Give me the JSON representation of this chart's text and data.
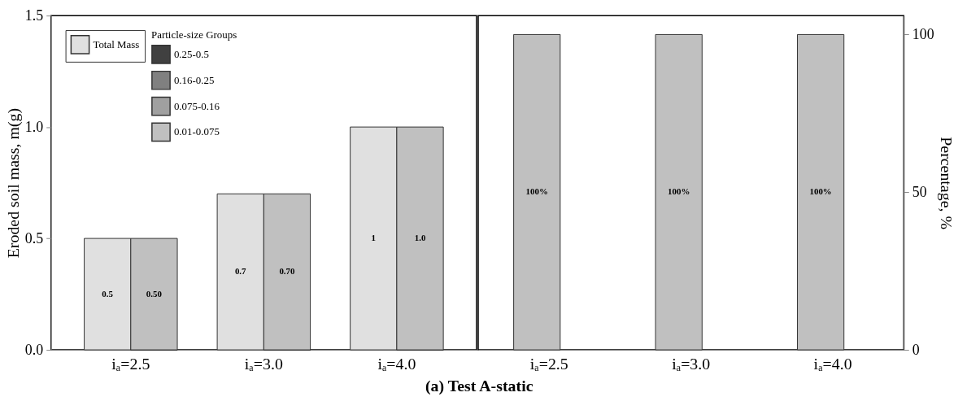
{
  "chart_data": [
    {
      "type": "bar",
      "categories": [
        "iₐ=2.5",
        "iₐ=3.0",
        "iₐ=4.0"
      ],
      "ylabel": "Eroded soil mass, m(g)",
      "ylim": [
        0,
        1.5
      ],
      "yticks": [
        {
          "value": 0,
          "label": "0.0"
        },
        {
          "value": 0.5,
          "label": "0.5"
        },
        {
          "value": 1,
          "label": "1.0"
        },
        {
          "value": 1.5,
          "label": "1.5"
        }
      ],
      "legend": "top left",
      "legend_title": "Particle-size Groups",
      "annotations": [
        "(a) Test A-static"
      ],
      "series": [
        {
          "name": "Total Mass",
          "color": "#e0e0e0",
          "values": [
            0.5,
            0.7,
            1
          ],
          "value_labels": [
            "0.5",
            "0.7",
            "1"
          ]
        },
        {
          "name": "0.25-0.5",
          "color": "#404040",
          "values": [
            0,
            0,
            0
          ]
        },
        {
          "name": "0.16-0.25",
          "color": "#808080",
          "values": [
            0,
            0,
            0
          ]
        },
        {
          "name": "0.075-0.16",
          "color": "#a0a0a0",
          "values": [
            0,
            0,
            0
          ]
        },
        {
          "name": "0.01-0.075",
          "color": "#c0c0c0",
          "values": [
            0.5,
            0.7,
            1.0
          ],
          "value_labels": [
            "0.50",
            "0.70",
            "1.0"
          ]
        }
      ]
    },
    {
      "type": "bar",
      "categories": [
        "iₐ=2.5",
        "iₐ=3.0",
        "iₐ=4.0"
      ],
      "ylabel": "Percentage, %",
      "ylim": [
        0,
        106
      ],
      "yticks": [
        0,
        50,
        100
      ],
      "series": [
        {
          "color": "#c0c0c0",
          "values": [
            100,
            100,
            100
          ],
          "value_labels": [
            "100%",
            "100%",
            "100%"
          ]
        }
      ]
    }
  ]
}
